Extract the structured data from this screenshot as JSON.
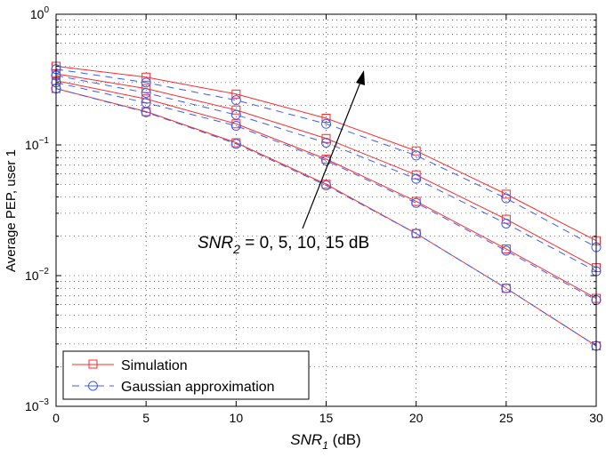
{
  "chart_data": {
    "type": "line",
    "xlabel": {
      "main": "SNR",
      "sub": "1",
      "unit": " (dB)"
    },
    "ylabel": "Average PEP, user 1",
    "xlim": [
      0,
      30
    ],
    "ylim": [
      0.001,
      1
    ],
    "yscale": "log",
    "grid": true,
    "x_ticks": [
      "0",
      "5",
      "10",
      "15",
      "20",
      "25",
      "30"
    ],
    "y_ticks": [
      {
        "base": "10",
        "exp": "0"
      },
      {
        "base": "10",
        "exp": "−1"
      },
      {
        "base": "10",
        "exp": "−2"
      },
      {
        "base": "10",
        "exp": "−3"
      }
    ],
    "x": [
      0,
      5,
      10,
      15,
      20,
      25,
      30
    ],
    "legend": {
      "placement": "bottom-left",
      "entries": [
        {
          "label": "Simulation",
          "color": "#ff2a2a",
          "style": "solid",
          "marker": "square"
        },
        {
          "label": "Gaussian approximation",
          "color": "#3a5cff",
          "style": "dashed",
          "marker": "circle"
        }
      ]
    },
    "series": [
      {
        "group": "Simulation",
        "values": [
          0.4,
          0.33,
          0.245,
          0.16,
          0.09,
          0.042,
          0.0185
        ]
      },
      {
        "group": "Simulation",
        "values": [
          0.35,
          0.27,
          0.185,
          0.112,
          0.059,
          0.027,
          0.0115
        ]
      },
      {
        "group": "Simulation",
        "values": [
          0.31,
          0.225,
          0.145,
          0.078,
          0.037,
          0.016,
          0.0067
        ]
      },
      {
        "group": "Simulation",
        "values": [
          0.27,
          0.18,
          0.104,
          0.05,
          0.021,
          0.008,
          0.0029
        ]
      },
      {
        "group": "Gaussian approximation",
        "values": [
          0.38,
          0.3,
          0.22,
          0.145,
          0.083,
          0.039,
          0.0165
        ]
      },
      {
        "group": "Gaussian approximation",
        "values": [
          0.34,
          0.25,
          0.17,
          0.104,
          0.055,
          0.025,
          0.0108
        ]
      },
      {
        "group": "Gaussian approximation",
        "values": [
          0.3,
          0.21,
          0.14,
          0.076,
          0.036,
          0.0155,
          0.0065
        ]
      },
      {
        "group": "Gaussian approximation",
        "values": [
          0.27,
          0.178,
          0.102,
          0.049,
          0.021,
          0.008,
          0.0029
        ]
      }
    ],
    "annotation": {
      "main": "SNR",
      "sub": "2",
      "rest": " = 0, 5, 10, 15 dB",
      "arrow": "increasing SNR2 direction"
    }
  }
}
